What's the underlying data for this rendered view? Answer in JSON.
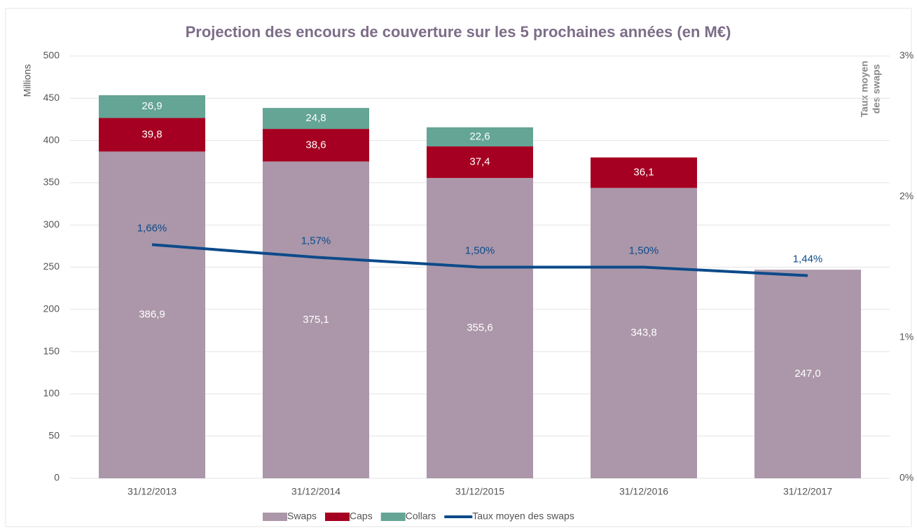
{
  "chart_data": {
    "type": "bar",
    "stacked": true,
    "title": "Projection des encours de couverture sur les 5 prochaines années (en M€)",
    "y_label": "Millions",
    "y2_label": [
      "Taux moyen",
      "des swaps"
    ],
    "categories": [
      "31/12/2013",
      "31/12/2014",
      "31/12/2015",
      "31/12/2016",
      "31/12/2017"
    ],
    "series": [
      {
        "name": "Swaps",
        "color": "#ab97a9",
        "values": [
          386.9,
          375.1,
          355.6,
          343.8,
          247.0
        ],
        "value_labels": [
          "386,9",
          "375,1",
          "355,6",
          "343,8",
          "247,0"
        ]
      },
      {
        "name": "Caps",
        "color": "#a50021",
        "values": [
          39.8,
          38.6,
          37.4,
          36.1,
          null
        ],
        "value_labels": [
          "39,8",
          "38,6",
          "37,4",
          "36,1",
          null
        ]
      },
      {
        "name": "Collars",
        "color": "#64a595",
        "values": [
          26.9,
          24.8,
          22.6,
          null,
          null
        ],
        "value_labels": [
          "26,9",
          "24,8",
          "22,6",
          null,
          null
        ]
      },
      {
        "name": "Taux moyen des swaps",
        "color": "#0c4a8a",
        "type": "line",
        "axis": "y2",
        "values": [
          1.66,
          1.57,
          1.5,
          1.5,
          1.44
        ],
        "value_labels": [
          "1,66%",
          "1,57%",
          "1,50%",
          "1,50%",
          "1,44%"
        ]
      }
    ],
    "ylim": [
      0,
      500
    ],
    "yticks": [
      0,
      50,
      100,
      150,
      200,
      250,
      300,
      350,
      400,
      450,
      500
    ],
    "y2lim": [
      0,
      3
    ],
    "y2ticks": [
      {
        "value": 0,
        "label": "0%"
      },
      {
        "value": 1,
        "label": "1%"
      },
      {
        "value": 2,
        "label": "2%"
      },
      {
        "value": 3,
        "label": "3%"
      }
    ],
    "grid": true,
    "legend": "bottom"
  }
}
